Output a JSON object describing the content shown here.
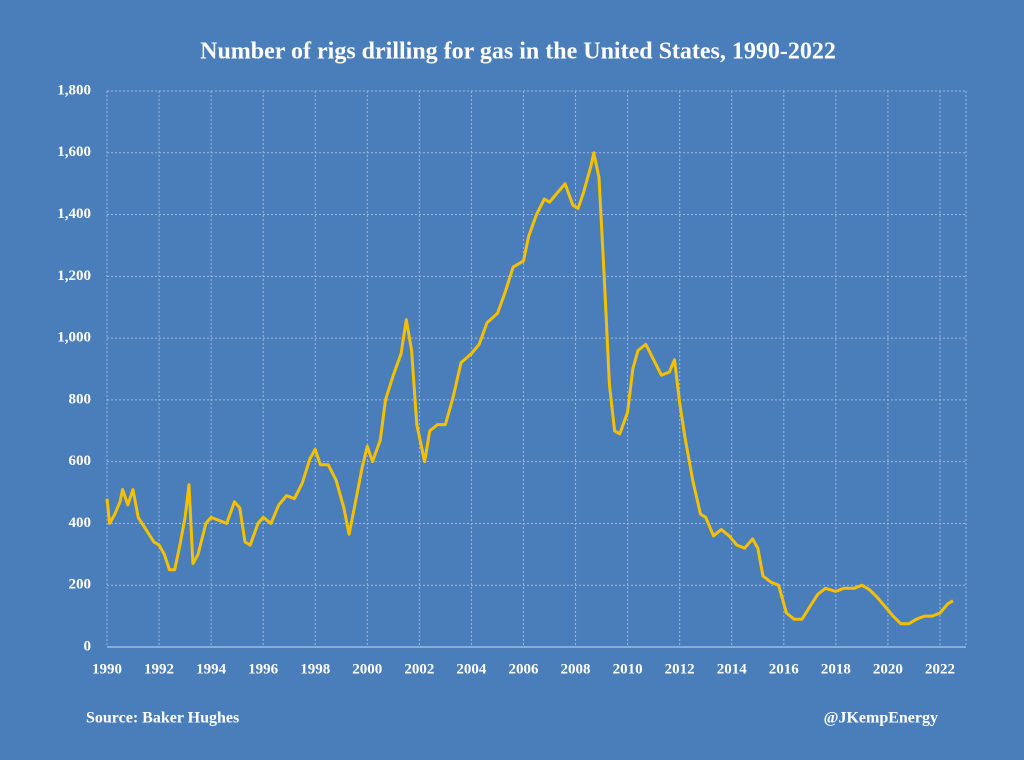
{
  "chart_data": {
    "type": "line",
    "title": "Number of rigs drilling for gas in the United States, 1990-2022",
    "source": "Source: Baker Hughes",
    "credit": "@JKempEnergy",
    "series": [
      {
        "name": "Gas rigs",
        "color": "#f5c000",
        "x": [
          1990.0,
          1990.1,
          1990.3,
          1990.5,
          1990.6,
          1990.8,
          1991.0,
          1991.2,
          1991.5,
          1991.8,
          1992.0,
          1992.2,
          1992.4,
          1992.6,
          1992.8,
          1993.0,
          1993.15,
          1993.3,
          1993.5,
          1993.8,
          1994.0,
          1994.3,
          1994.6,
          1994.9,
          1995.1,
          1995.3,
          1995.5,
          1995.8,
          1996.0,
          1996.3,
          1996.6,
          1996.9,
          1997.2,
          1997.5,
          1997.8,
          1998.0,
          1998.2,
          1998.5,
          1998.8,
          1999.1,
          1999.3,
          1999.5,
          1999.8,
          2000.0,
          2000.2,
          2000.5,
          2000.7,
          2001.0,
          2001.3,
          2001.5,
          2001.7,
          2001.9,
          2002.2,
          2002.4,
          2002.7,
          2003.0,
          2003.3,
          2003.6,
          2004.0,
          2004.3,
          2004.6,
          2005.0,
          2005.3,
          2005.6,
          2006.0,
          2006.2,
          2006.5,
          2006.8,
          2007.0,
          2007.3,
          2007.6,
          2007.9,
          2008.1,
          2008.3,
          2008.6,
          2008.7,
          2008.9,
          2009.1,
          2009.3,
          2009.5,
          2009.7,
          2010.0,
          2010.2,
          2010.4,
          2010.7,
          2011.0,
          2011.3,
          2011.6,
          2011.8,
          2012.0,
          2012.2,
          2012.5,
          2012.8,
          2013.0,
          2013.3,
          2013.6,
          2013.9,
          2014.2,
          2014.5,
          2014.8,
          2015.0,
          2015.2,
          2015.5,
          2015.8,
          2016.1,
          2016.4,
          2016.7,
          2017.0,
          2017.3,
          2017.6,
          2018.0,
          2018.3,
          2018.7,
          2019.0,
          2019.3,
          2019.6,
          2019.9,
          2020.2,
          2020.5,
          2020.8,
          2021.1,
          2021.4,
          2021.7,
          2022.0,
          2022.3,
          2022.5
        ],
        "values": [
          480,
          400,
          430,
          470,
          510,
          460,
          510,
          420,
          380,
          340,
          330,
          300,
          250,
          250,
          330,
          420,
          525,
          270,
          300,
          400,
          420,
          410,
          400,
          470,
          450,
          340,
          330,
          400,
          420,
          400,
          460,
          490,
          480,
          530,
          610,
          640,
          590,
          590,
          540,
          450,
          365,
          450,
          580,
          650,
          600,
          670,
          800,
          880,
          950,
          1060,
          960,
          720,
          600,
          700,
          720,
          720,
          810,
          920,
          950,
          980,
          1050,
          1080,
          1150,
          1230,
          1250,
          1330,
          1400,
          1450,
          1440,
          1470,
          1500,
          1430,
          1420,
          1470,
          1560,
          1600,
          1520,
          1200,
          850,
          700,
          690,
          760,
          900,
          960,
          980,
          930,
          880,
          890,
          930,
          790,
          680,
          540,
          430,
          420,
          360,
          380,
          360,
          330,
          320,
          350,
          320,
          230,
          210,
          200,
          110,
          90,
          90,
          130,
          170,
          190,
          180,
          190,
          190,
          200,
          185,
          160,
          130,
          100,
          75,
          75,
          90,
          100,
          100,
          110,
          140,
          150
        ]
      }
    ],
    "xlim": [
      1990,
      2023
    ],
    "xticks": [
      1990,
      1992,
      1994,
      1996,
      1998,
      2000,
      2002,
      2004,
      2006,
      2008,
      2010,
      2012,
      2014,
      2016,
      2018,
      2020,
      2022
    ],
    "ylim": [
      0,
      1800
    ],
    "yticks": [
      0,
      {
        "value": 200,
        "label": "200"
      },
      400,
      600,
      800,
      {
        "value": 1000,
        "label": "1,000"
      },
      {
        "value": 1200,
        "label": "1,200"
      },
      {
        "value": 1400,
        "label": "1,400"
      },
      {
        "value": 1600,
        "label": "1,600"
      },
      {
        "value": 1800,
        "label": "1,800"
      }
    ],
    "grid": true
  }
}
